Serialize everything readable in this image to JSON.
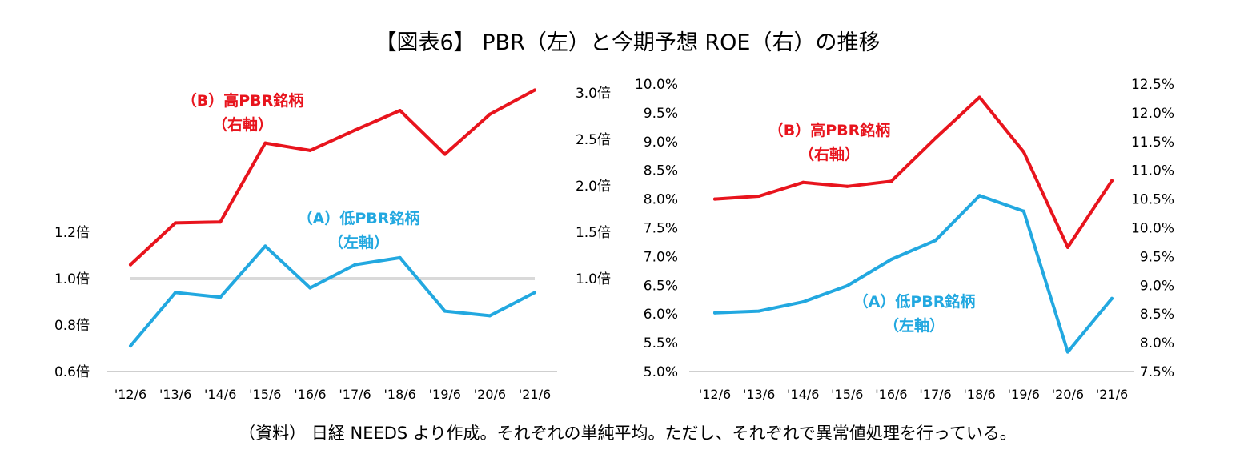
{
  "title": "【図表6】 PBR（左）と今期予想 ROE（右）の推移",
  "source": "（資料） 日経 NEEDS より作成。それぞれの単純平均。ただし、それぞれで異常値処理を行っている。",
  "colors": {
    "high": "#e8141d",
    "low": "#22a8e0",
    "reference": "#d9d9d9",
    "axis": "#bfbfbf"
  },
  "chart_data": [
    {
      "type": "line",
      "title": "PBR",
      "categories": [
        "'12/6",
        "'13/6",
        "'14/6",
        "'15/6",
        "'16/6",
        "'17/6",
        "'18/6",
        "'19/6",
        "'20/6",
        "'21/6"
      ],
      "reference_line": {
        "axis": "left",
        "value": 1.0
      },
      "left_axis": {
        "ylim": [
          0.6,
          1.3
        ],
        "ticks": [
          0.6,
          0.8,
          1.0,
          1.2
        ],
        "tick_labels": [
          "0.6倍",
          "0.8倍",
          "1.0倍",
          "1.2倍"
        ]
      },
      "right_axis": {
        "ylim": [
          0.3,
          3.2
        ],
        "ticks": [
          1.0,
          1.5,
          2.0,
          2.5,
          3.0
        ],
        "tick_labels": [
          "1.0倍",
          "1.5倍",
          "2.0倍",
          "2.5倍",
          "3.0倍"
        ]
      },
      "series": [
        {
          "name": "（B）高PBR銘柄",
          "axis_label": "（右軸）",
          "axis": "right",
          "color": "#e8141d",
          "values": [
            1.15,
            1.6,
            1.61,
            2.46,
            2.38,
            2.6,
            2.81,
            2.34,
            2.77,
            3.03
          ]
        },
        {
          "name": "（A）低PBR銘柄",
          "axis_label": "（左軸）",
          "axis": "left",
          "color": "#22a8e0",
          "values": [
            0.71,
            0.94,
            0.92,
            1.14,
            0.96,
            1.06,
            1.09,
            0.86,
            0.84,
            0.94
          ]
        }
      ]
    },
    {
      "type": "line",
      "title": "今期予想 ROE",
      "categories": [
        "'12/6",
        "'13/6",
        "'14/6",
        "'15/6",
        "'16/6",
        "'17/6",
        "'18/6",
        "'19/6",
        "'20/6",
        "'21/6"
      ],
      "left_axis": {
        "ylim": [
          5.0,
          10.0
        ],
        "ticks": [
          5.0,
          5.5,
          6.0,
          6.5,
          7.0,
          7.5,
          8.0,
          8.5,
          9.0,
          9.5,
          10.0
        ],
        "tick_labels": [
          "5.0%",
          "5.5%",
          "6.0%",
          "6.5%",
          "7.0%",
          "7.5%",
          "8.0%",
          "8.5%",
          "9.0%",
          "9.5%",
          "10.0%"
        ]
      },
      "right_axis": {
        "ylim": [
          7.5,
          12.5
        ],
        "ticks": [
          7.5,
          8.0,
          8.5,
          9.0,
          9.5,
          10.0,
          10.5,
          11.0,
          11.5,
          12.0,
          12.5
        ],
        "tick_labels": [
          "7.5%",
          "8.0%",
          "8.5%",
          "9.0%",
          "9.5%",
          "10.0%",
          "10.5%",
          "11.0%",
          "11.5%",
          "12.0%",
          "12.5%"
        ]
      },
      "series": [
        {
          "name": "（B）高PBR銘柄",
          "axis_label": "（右軸）",
          "axis": "right",
          "color": "#e8141d",
          "values": [
            10.5,
            10.55,
            10.79,
            10.72,
            10.81,
            11.56,
            12.27,
            11.32,
            9.66,
            10.82
          ]
        },
        {
          "name": "（A）低PBR銘柄",
          "axis_label": "（左軸）",
          "axis": "left",
          "color": "#22a8e0",
          "values": [
            6.02,
            6.05,
            6.21,
            6.49,
            6.95,
            7.28,
            8.06,
            7.79,
            5.34,
            6.27
          ]
        }
      ]
    }
  ]
}
